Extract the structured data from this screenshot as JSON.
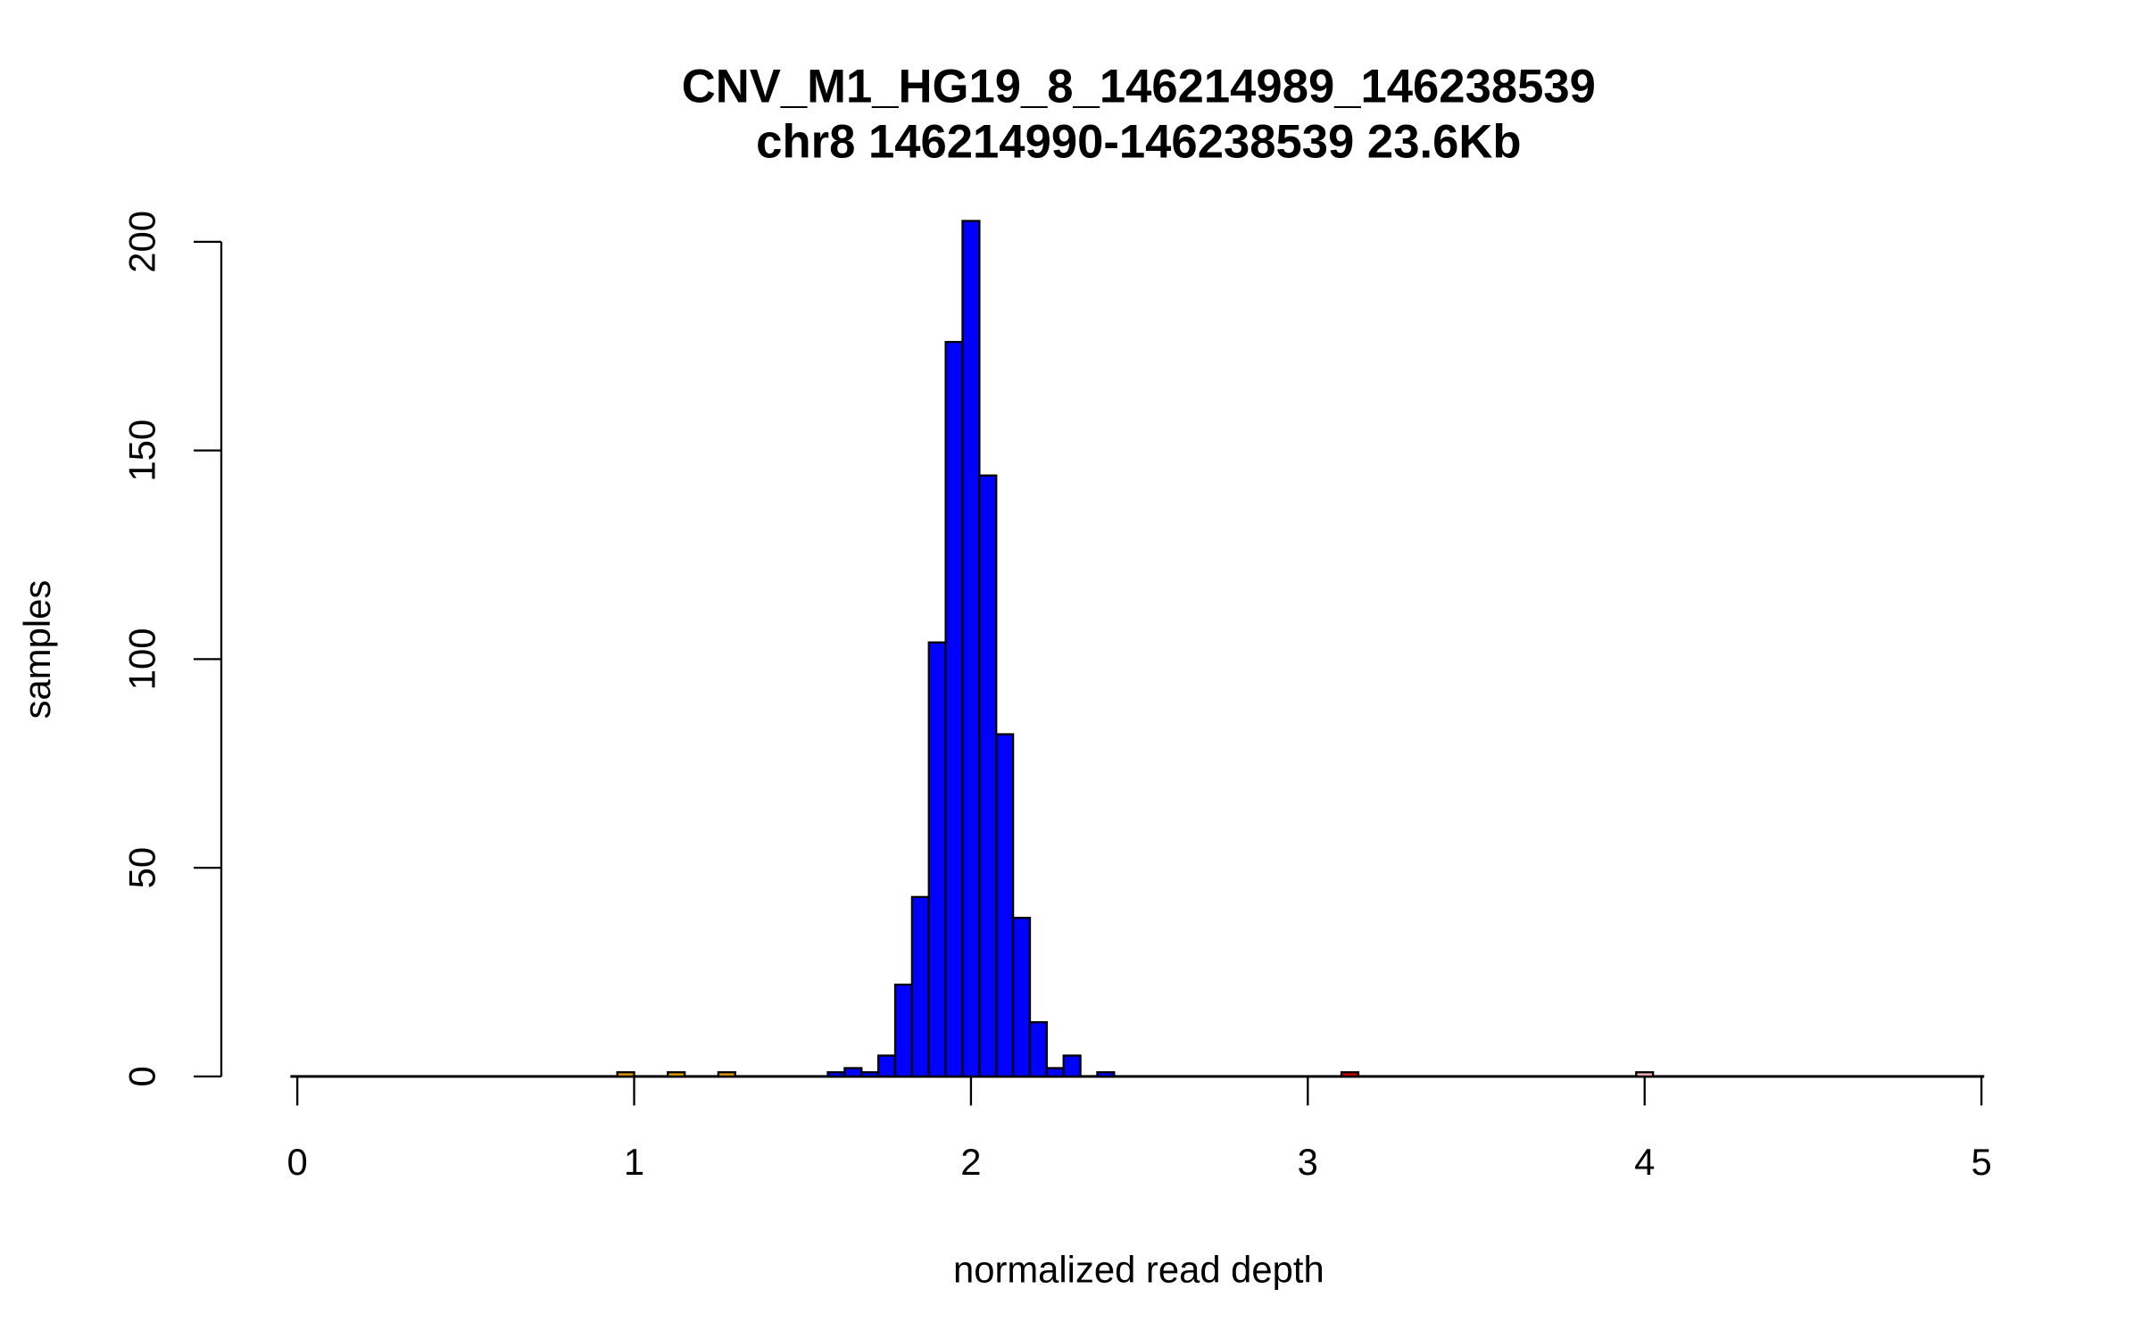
{
  "chart_data": {
    "type": "bar",
    "title": "CNV_M1_HG19_8_146214989_146238539",
    "subtitle": "chr8 146214990-146238539 23.6Kb",
    "xlabel": "normalized read depth",
    "ylabel": "samples",
    "xlim": [
      0,
      5
    ],
    "ylim": [
      0,
      200
    ],
    "xticks": [
      "0",
      "1",
      "2",
      "3",
      "4",
      "5"
    ],
    "yticks": [
      "0",
      "50",
      "100",
      "150",
      "200"
    ],
    "grid": false,
    "bins": [
      {
        "start": 0.95,
        "end": 1.0,
        "count": 1,
        "color": "#e69f00"
      },
      {
        "start": 1.1,
        "end": 1.15,
        "count": 1,
        "color": "#e69f00"
      },
      {
        "start": 1.25,
        "end": 1.3,
        "count": 1,
        "color": "#e69f00"
      },
      {
        "start": 1.575,
        "end": 1.625,
        "count": 1,
        "color": "#0000ff"
      },
      {
        "start": 1.625,
        "end": 1.675,
        "count": 2,
        "color": "#0000ff"
      },
      {
        "start": 1.675,
        "end": 1.725,
        "count": 1,
        "color": "#0000ff"
      },
      {
        "start": 1.725,
        "end": 1.775,
        "count": 5,
        "color": "#0000ff"
      },
      {
        "start": 1.775,
        "end": 1.825,
        "count": 22,
        "color": "#0000ff"
      },
      {
        "start": 1.825,
        "end": 1.875,
        "count": 43,
        "color": "#0000ff"
      },
      {
        "start": 1.875,
        "end": 1.925,
        "count": 104,
        "color": "#0000ff"
      },
      {
        "start": 1.925,
        "end": 1.975,
        "count": 176,
        "color": "#0000ff"
      },
      {
        "start": 1.975,
        "end": 2.025,
        "count": 205,
        "color": "#0000ff"
      },
      {
        "start": 2.025,
        "end": 2.075,
        "count": 144,
        "color": "#0000ff"
      },
      {
        "start": 2.075,
        "end": 2.125,
        "count": 82,
        "color": "#0000ff"
      },
      {
        "start": 2.125,
        "end": 2.175,
        "count": 38,
        "color": "#0000ff"
      },
      {
        "start": 2.175,
        "end": 2.225,
        "count": 13,
        "color": "#0000ff"
      },
      {
        "start": 2.225,
        "end": 2.275,
        "count": 2,
        "color": "#0000ff"
      },
      {
        "start": 2.275,
        "end": 2.325,
        "count": 5,
        "color": "#0000ff"
      },
      {
        "start": 2.375,
        "end": 2.425,
        "count": 1,
        "color": "#0000ff"
      },
      {
        "start": 3.1,
        "end": 3.15,
        "count": 1,
        "color": "#d40000"
      },
      {
        "start": 3.975,
        "end": 4.025,
        "count": 1,
        "color": "#f4b8b8"
      }
    ]
  }
}
